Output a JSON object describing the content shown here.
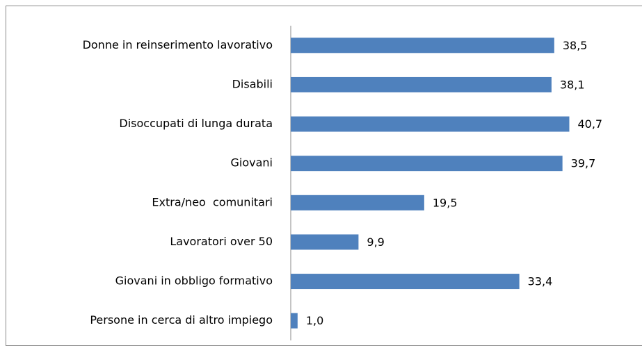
{
  "chart_data": {
    "type": "bar",
    "orientation": "horizontal",
    "categories": [
      "Donne in reinserimento lavorativo",
      "Disabili",
      "Disoccupati di lunga durata",
      "Giovani",
      "Extra/neo  comunitari",
      "Lavoratori over 50",
      "Giovani in obbligo formativo",
      "Persone in cerca di altro impiego"
    ],
    "values": [
      38.5,
      38.1,
      40.7,
      39.7,
      19.5,
      9.9,
      33.4,
      1.0
    ],
    "value_labels": [
      "38,5",
      "38,1",
      "40,7",
      "39,7",
      "19,5",
      "9,9",
      "33,4",
      "1,0"
    ],
    "color": "#4f81bd",
    "xlim": [
      0,
      50
    ]
  }
}
